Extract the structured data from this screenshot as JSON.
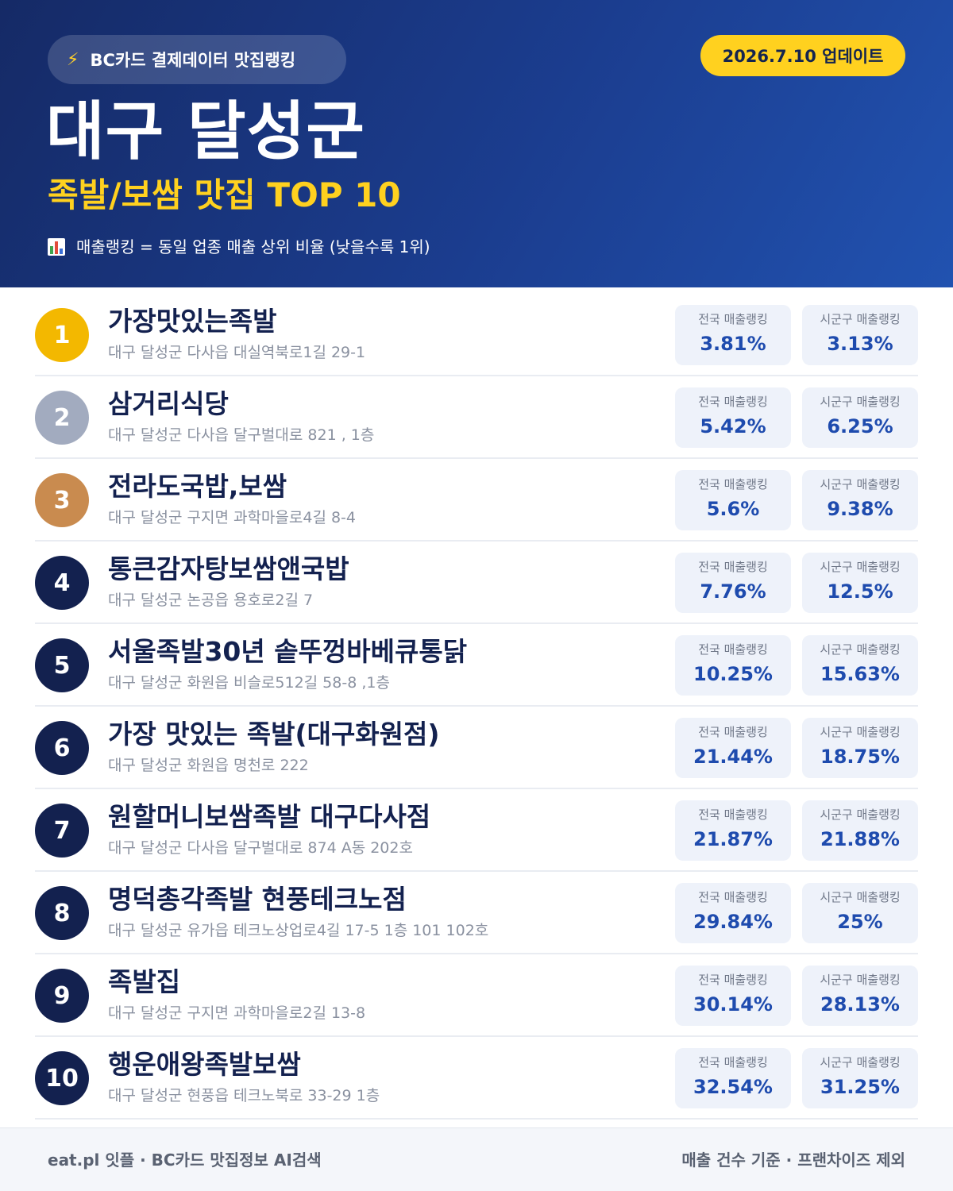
{
  "header": {
    "source_icon": "lightning-icon",
    "source_label": "BC카드 결제데이터 맛집랭킹",
    "update_label": "2026.7.10 업데이트",
    "title": "대구 달성군",
    "subtitle": "족발/보쌈 맛집 TOP 10",
    "note_icon": "bar-chart-icon",
    "note": "매출랭킹 = 동일 업종 매출 상위 비율 (낮을수록 1위)"
  },
  "labels": {
    "national": "전국 매출랭킹",
    "regional": "시군구 매출랭킹"
  },
  "colors": {
    "header_start": "#152a66",
    "header_end": "#2152b0",
    "accent_yellow": "#ffd11f",
    "gold": "#f3b800",
    "silver": "#a2abbf",
    "bronze": "#c98b4f",
    "navy": "#13214f",
    "value_blue": "#1e4bae"
  },
  "items": [
    {
      "rank": "1",
      "name": "가장맛있는족발",
      "address": "대구 달성군 다사읍 대실역북로1길 29-1",
      "national": "3.81%",
      "regional": "3.13%"
    },
    {
      "rank": "2",
      "name": "삼거리식당",
      "address": "대구 달성군 다사읍 달구벌대로 821 , 1층",
      "national": "5.42%",
      "regional": "6.25%"
    },
    {
      "rank": "3",
      "name": "전라도국밥,보쌈",
      "address": "대구 달성군 구지면 과학마을로4길 8-4",
      "national": "5.6%",
      "regional": "9.38%"
    },
    {
      "rank": "4",
      "name": "통큰감자탕보쌈앤국밥",
      "address": "대구 달성군 논공읍 용호로2길 7",
      "national": "7.76%",
      "regional": "12.5%"
    },
    {
      "rank": "5",
      "name": "서울족발30년 솥뚜껑바베큐통닭",
      "address": "대구 달성군 화원읍 비슬로512길 58-8 ,1층",
      "national": "10.25%",
      "regional": "15.63%"
    },
    {
      "rank": "6",
      "name": "가장 맛있는 족발(대구화원점)",
      "address": "대구 달성군 화원읍 명천로 222",
      "national": "21.44%",
      "regional": "18.75%"
    },
    {
      "rank": "7",
      "name": "원할머니보쌈족발 대구다사점",
      "address": "대구 달성군 다사읍 달구벌대로 874 A동 202호",
      "national": "21.87%",
      "regional": "21.88%"
    },
    {
      "rank": "8",
      "name": "명덕총각족발 현풍테크노점",
      "address": "대구 달성군 유가읍 테크노상업로4길 17-5 1층 101 102호",
      "national": "29.84%",
      "regional": "25%"
    },
    {
      "rank": "9",
      "name": "족발집",
      "address": "대구 달성군 구지면 과학마을로2길 13-8",
      "national": "30.14%",
      "regional": "28.13%"
    },
    {
      "rank": "10",
      "name": "행운애왕족발보쌈",
      "address": "대구 달성군 현풍읍 테크노북로 33-29 1층",
      "national": "32.54%",
      "regional": "31.25%"
    }
  ],
  "footer": {
    "left": "eat.pl 잇플 · BC카드 맛집정보 AI검색",
    "right": "매출 건수 기준 · 프랜차이즈 제외"
  }
}
